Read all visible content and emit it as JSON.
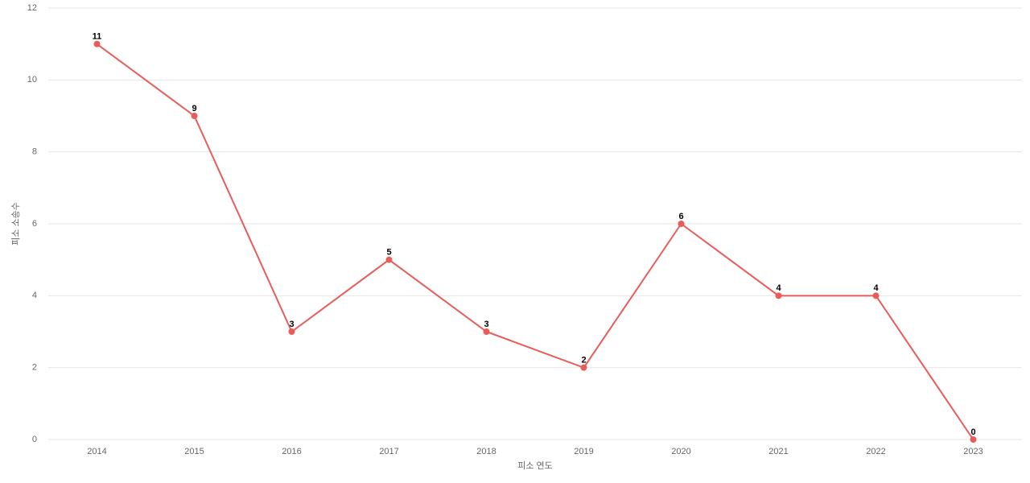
{
  "chart_data": {
    "type": "line",
    "x_label": "피소 연도",
    "y_label": "피소 소송수",
    "categories": [
      "2014",
      "2015",
      "2016",
      "2017",
      "2018",
      "2019",
      "2020",
      "2021",
      "2022",
      "2023"
    ],
    "values": [
      11,
      9,
      3,
      5,
      3,
      2,
      6,
      4,
      4,
      0
    ],
    "color": "#e85c5a",
    "ylim": [
      0,
      12
    ],
    "yticks": [
      0,
      2,
      4,
      6,
      8,
      10,
      12
    ],
    "grid": true
  }
}
